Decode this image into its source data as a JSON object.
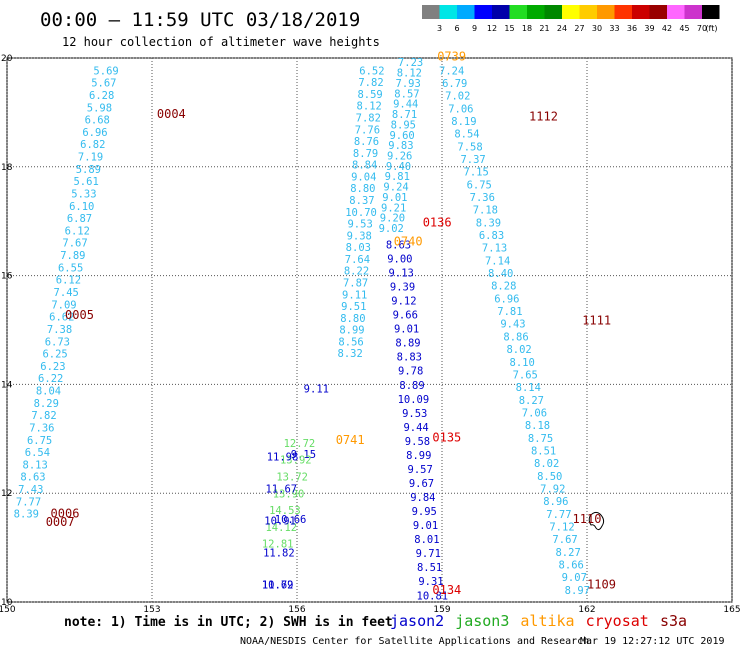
{
  "chart_data": {
    "type": "scatter",
    "title": "00:00 – 11:59 UTC 03/18/2019",
    "subtitle": "12 hour collection of altimeter wave heights",
    "xlim": [
      150,
      165
    ],
    "ylim": [
      10,
      20
    ],
    "x_ticks": [
      "150",
      "153",
      "156",
      "159",
      "162",
      "165"
    ],
    "y_ticks": [
      "10",
      "12",
      "14",
      "16",
      "18",
      "20"
    ],
    "grid": true,
    "color_scale": {
      "unit": "(ft)",
      "thresholds": [
        "3",
        "6",
        "9",
        "12",
        "15",
        "18",
        "21",
        "24",
        "27",
        "30",
        "33",
        "36",
        "39",
        "42",
        "45",
        "70"
      ],
      "colors": [
        "#808080",
        "#00e6e6",
        "#00aaff",
        "#0000ff",
        "#0000aa",
        "#22dd22",
        "#00aa00",
        "#008800",
        "#ffff00",
        "#ffcc00",
        "#ff9900",
        "#ff3300",
        "#cc0000",
        "#990000",
        "#ff66ff",
        "#cc33cc",
        "#000000"
      ]
    },
    "series": [
      {
        "name": "jason2",
        "color": "#0000cc"
      },
      {
        "name": "jason3",
        "color": "#22aa22"
      },
      {
        "name": "altika",
        "color": "#ff9900"
      },
      {
        "name": "cryosat",
        "color": "#dd0000"
      },
      {
        "name": "s3a",
        "color": "#880000"
      }
    ],
    "tracks": [
      {
        "color": "#33bbee",
        "x0": 152.05,
        "y0": 19.7,
        "x1": 150.4,
        "y1": 11.55,
        "values": [
          "5.69",
          "5.67",
          "6.28",
          "5.98",
          "6.68",
          "6.96",
          "6.82",
          "7.19",
          "5.89",
          "5.61",
          "5.33",
          "6.10",
          "6.87",
          "6.12",
          "7.67",
          "7.89",
          "6.55",
          "6.12",
          "7.45",
          "7.09",
          "6.62",
          "7.38",
          "6.73",
          "6.25",
          "6.23",
          "6.22",
          "8.04",
          "8.29",
          "7.82",
          "7.36",
          "6.75",
          "6.54",
          "8.13",
          "8.63",
          "7.43",
          "7.77",
          "8.39"
        ]
      },
      {
        "color": "#33bbee",
        "x0": 157.55,
        "y0": 19.7,
        "x1": 157.1,
        "y1": 14.5,
        "values": [
          "6.52",
          "7.82",
          "8.59",
          "8.12",
          "7.82",
          "7.76",
          "8.76",
          "8.79",
          "8.84",
          "9.04",
          "8.80",
          "8.37",
          "10.70",
          "9.53",
          "9.38",
          "8.03",
          "7.64",
          "8.22",
          "7.87",
          "9.11",
          "9.51",
          "8.80",
          "8.99",
          "8.56",
          "8.32"
        ]
      },
      {
        "color": "#33bbee",
        "x0": 158.35,
        "y0": 19.85,
        "x1": 157.95,
        "y1": 16.8,
        "values": [
          "7.23",
          "8.12",
          "7.93",
          "8.57",
          "9.44",
          "8.71",
          "8.95",
          "9.60",
          "9.83",
          "9.26",
          "9.40",
          "9.81",
          "9.24",
          "9.01",
          "9.21",
          "9.20",
          "9.02"
        ]
      },
      {
        "color": "#0000cc",
        "x0": 158.1,
        "y0": 16.5,
        "x1": 158.8,
        "y1": 10.05,
        "values": [
          "8.63",
          "9.00",
          "9.13",
          "9.39",
          "9.12",
          "9.66",
          "9.01",
          "8.89",
          "8.83",
          "9.78",
          "8.89",
          "10.09",
          "9.53",
          "9.44",
          "9.58",
          "8.99",
          "9.57",
          "9.67",
          "9.84",
          "9.95",
          "9.01",
          "8.01",
          "9.71",
          "8.51",
          "9.31",
          "10.81"
        ]
      },
      {
        "color": "#0000cc",
        "x0": 156.4,
        "y0": 13.85,
        "x1": 155.6,
        "y1": 10.25,
        "values": [
          "9.11",
          "9.15",
          "10.66",
          "11.79"
        ]
      },
      {
        "color": "#66dd66",
        "x0": 156.05,
        "y0": 12.85,
        "x1": 155.6,
        "y1": 11.0,
        "values": [
          "12.72",
          "13.92",
          "13.72",
          "13.90",
          "14.53",
          "14.12",
          "12.81"
        ]
      },
      {
        "color": "#0000cc",
        "x0": 155.7,
        "y0": 12.6,
        "x1": 155.6,
        "y1": 10.25,
        "values": [
          "11.98",
          "11.67",
          "10.91",
          "11.82",
          "10.62"
        ]
      },
      {
        "color": "#33bbee",
        "x0": 159.2,
        "y0": 19.7,
        "x1": 161.8,
        "y1": 10.15,
        "values": [
          "7.24",
          "6.79",
          "7.02",
          "7.06",
          "8.19",
          "8.54",
          "7.58",
          "7.37",
          "7.15",
          "6.75",
          "7.36",
          "7.18",
          "8.39",
          "6.83",
          "7.13",
          "7.14",
          "8.40",
          "8.28",
          "6.96",
          "7.81",
          "9.43",
          "8.86",
          "8.02",
          "8.10",
          "7.65",
          "8.14",
          "8.27",
          "7.06",
          "8.18",
          "8.75",
          "8.51",
          "8.02",
          "8.50",
          "7.92",
          "8.96",
          "7.77",
          "7.12",
          "7.67",
          "8.27",
          "8.66",
          "9.07",
          "8.97"
        ]
      }
    ],
    "pass_labels": [
      {
        "text": "0739",
        "x": 159.2,
        "y": 19.95,
        "color": "#ff9900"
      },
      {
        "text": "0004",
        "x": 153.4,
        "y": 18.9,
        "color": "#880000"
      },
      {
        "text": "1112",
        "x": 161.1,
        "y": 18.85,
        "color": "#880000"
      },
      {
        "text": "0136",
        "x": 158.9,
        "y": 16.9,
        "color": "#dd0000"
      },
      {
        "text": "0740",
        "x": 158.3,
        "y": 16.55,
        "color": "#ff9900"
      },
      {
        "text": "0005",
        "x": 151.5,
        "y": 15.2,
        "color": "#880000"
      },
      {
        "text": "1111",
        "x": 162.2,
        "y": 15.1,
        "color": "#880000"
      },
      {
        "text": "0741",
        "x": 157.1,
        "y": 12.9,
        "color": "#ff9900"
      },
      {
        "text": "0135",
        "x": 159.1,
        "y": 12.95,
        "color": "#dd0000"
      },
      {
        "text": "0006",
        "x": 151.2,
        "y": 11.55,
        "color": "#880000"
      },
      {
        "text": "0007",
        "x": 151.1,
        "y": 11.4,
        "color": "#880000"
      },
      {
        "text": "1110",
        "x": 162.0,
        "y": 11.45,
        "color": "#880000"
      },
      {
        "text": "0134",
        "x": 159.1,
        "y": 10.15,
        "color": "#dd0000"
      },
      {
        "text": "1109",
        "x": 162.3,
        "y": 10.25,
        "color": "#880000"
      }
    ]
  },
  "footer": {
    "note": "note: 1) Time is in UTC; 2) SWH is in feet",
    "credit": "NOAA/NESDIS Center for Satellite Applications and Research",
    "timestamp": "Mar 19 12:27:12 UTC 2019"
  }
}
